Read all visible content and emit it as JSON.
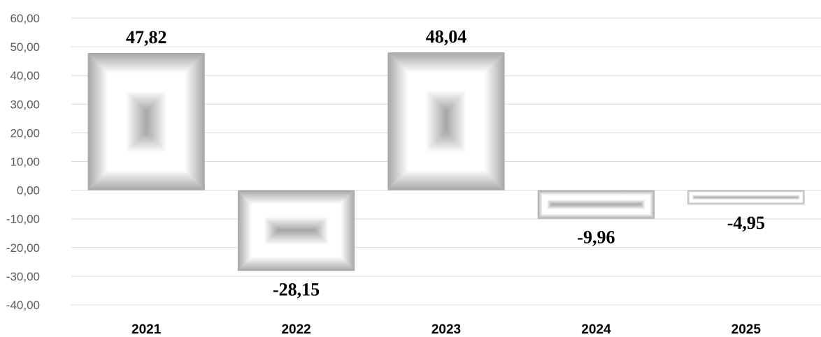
{
  "chart_data": {
    "type": "bar",
    "categories": [
      "2021",
      "2022",
      "2023",
      "2024",
      "2025"
    ],
    "values": [
      47.82,
      -28.15,
      48.04,
      -9.96,
      -4.95
    ],
    "data_labels": [
      "47,82",
      "-28,15",
      "48,04",
      "-9,96",
      "-4,95"
    ],
    "y_ticks": [
      60,
      50,
      40,
      30,
      20,
      10,
      0,
      -10,
      -20,
      -30,
      -40
    ],
    "y_tick_labels": [
      "60,00",
      "50,00",
      "40,00",
      "30,00",
      "20,00",
      "10,00",
      "0,00",
      "-10,00",
      "-20,00",
      "-30,00",
      "-40,00"
    ],
    "ylim": [
      -40,
      60
    ],
    "grid": true,
    "legend": "none",
    "title": "",
    "xlabel": "",
    "ylabel": "",
    "colors": {
      "bar_edge": "#a6a6a6",
      "bar_center": "#ffffff",
      "grid": "#d9d9d9"
    }
  }
}
